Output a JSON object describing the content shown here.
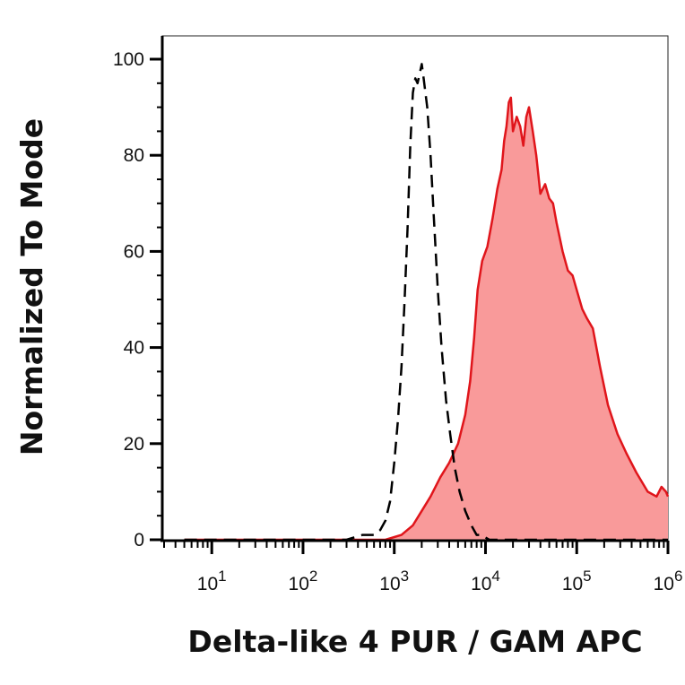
{
  "chart_data": {
    "type": "area",
    "xscale": "log",
    "xlim": [
      3,
      1000000
    ],
    "ylim": [
      0,
      100
    ],
    "xlabel": "Delta-like 4 PUR / GAM APC",
    "ylabel": "Normalized To Mode",
    "y_ticks": [
      0,
      20,
      40,
      60,
      80,
      100
    ],
    "y_tick_labels": [
      "0",
      "20",
      "40",
      "60",
      "80",
      "100"
    ],
    "x_tick_labels": [
      {
        "base": "10",
        "exp": "1",
        "value": 10
      },
      {
        "base": "10",
        "exp": "2",
        "value": 100
      },
      {
        "base": "10",
        "exp": "3",
        "value": 1000
      },
      {
        "base": "10",
        "exp": "4",
        "value": 10000
      },
      {
        "base": "10",
        "exp": "5",
        "value": 100000
      },
      {
        "base": "10",
        "exp": "6",
        "value": 1000000
      }
    ],
    "colors": {
      "sample_fill": "#f99a9a",
      "sample_line": "#e0151b",
      "control_line": "#000000"
    },
    "series": [
      {
        "style": "filled-red",
        "points": [
          [
            5,
            0
          ],
          [
            50,
            0
          ],
          [
            300,
            0
          ],
          [
            800,
            0
          ],
          [
            1200,
            1
          ],
          [
            1600,
            3
          ],
          [
            2000,
            6
          ],
          [
            2500,
            9
          ],
          [
            3200,
            13
          ],
          [
            4000,
            16
          ],
          [
            5000,
            20
          ],
          [
            6000,
            26
          ],
          [
            6800,
            33
          ],
          [
            7500,
            42
          ],
          [
            8200,
            52
          ],
          [
            9200,
            58
          ],
          [
            10500,
            61
          ],
          [
            12000,
            67
          ],
          [
            13500,
            73
          ],
          [
            15000,
            77
          ],
          [
            16000,
            83
          ],
          [
            17000,
            86
          ],
          [
            18000,
            91
          ],
          [
            19000,
            92
          ],
          [
            20000,
            85
          ],
          [
            22000,
            88
          ],
          [
            24000,
            86
          ],
          [
            26000,
            82
          ],
          [
            28000,
            88
          ],
          [
            30000,
            90
          ],
          [
            33000,
            85
          ],
          [
            36000,
            80
          ],
          [
            40000,
            72
          ],
          [
            45000,
            74
          ],
          [
            50000,
            71
          ],
          [
            55000,
            70
          ],
          [
            60000,
            66
          ],
          [
            70000,
            60
          ],
          [
            80000,
            56
          ],
          [
            90000,
            55
          ],
          [
            100000,
            52
          ],
          [
            115000,
            48
          ],
          [
            130000,
            46
          ],
          [
            150000,
            44
          ],
          [
            180000,
            36
          ],
          [
            220000,
            28
          ],
          [
            280000,
            22
          ],
          [
            350000,
            18
          ],
          [
            450000,
            14
          ],
          [
            600000,
            10
          ],
          [
            750000,
            9
          ],
          [
            850000,
            11
          ],
          [
            950000,
            10
          ],
          [
            1000000,
            9
          ]
        ]
      },
      {
        "style": "dashed-black",
        "points": [
          [
            5,
            0
          ],
          [
            300,
            0
          ],
          [
            450,
            1
          ],
          [
            600,
            1
          ],
          [
            700,
            2
          ],
          [
            800,
            4
          ],
          [
            900,
            8
          ],
          [
            1000,
            16
          ],
          [
            1100,
            25
          ],
          [
            1200,
            36
          ],
          [
            1300,
            50
          ],
          [
            1400,
            65
          ],
          [
            1500,
            82
          ],
          [
            1600,
            93
          ],
          [
            1700,
            96
          ],
          [
            1800,
            95
          ],
          [
            1900,
            97
          ],
          [
            2000,
            99
          ],
          [
            2100,
            96
          ],
          [
            2300,
            90
          ],
          [
            2500,
            80
          ],
          [
            2700,
            68
          ],
          [
            3000,
            52
          ],
          [
            3300,
            40
          ],
          [
            3700,
            29
          ],
          [
            4100,
            22
          ],
          [
            4600,
            15
          ],
          [
            5200,
            10
          ],
          [
            6000,
            6
          ],
          [
            7000,
            3
          ],
          [
            8000,
            1
          ],
          [
            9000,
            1
          ],
          [
            11000,
            0
          ],
          [
            20000,
            0
          ],
          [
            1000000,
            0
          ]
        ]
      }
    ]
  }
}
